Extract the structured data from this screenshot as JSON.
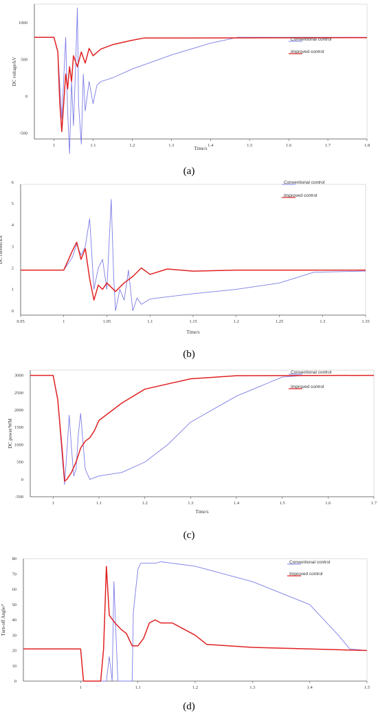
{
  "colors": {
    "conventional": "#7b7be8",
    "improved": "#e02020"
  },
  "chart_data": [
    {
      "type": "line",
      "caption": "(a)",
      "xlabel": "Time/s",
      "ylabel": "DC voltage/kV",
      "xlim": [
        0.95,
        1.8
      ],
      "ylim": [
        -580,
        1250
      ],
      "xticks": [
        1,
        1.1,
        1.2,
        1.3,
        1.4,
        1.5,
        1.6,
        1.7,
        1.8
      ],
      "yticks": [
        1000,
        500,
        0,
        -500
      ],
      "legend": {
        "conventional": "Conventional control",
        "improved": "Improved control"
      },
      "series": [
        {
          "key": "conventional",
          "points": [
            [
              0.95,
              800
            ],
            [
              1.0,
              800
            ],
            [
              1.01,
              600
            ],
            [
              1.02,
              -300
            ],
            [
              1.03,
              800
            ],
            [
              1.035,
              -200
            ],
            [
              1.04,
              -780
            ],
            [
              1.045,
              200
            ],
            [
              1.05,
              -400
            ],
            [
              1.055,
              350
            ],
            [
              1.06,
              1200
            ],
            [
              1.063,
              -100
            ],
            [
              1.07,
              -650
            ],
            [
              1.075,
              300
            ],
            [
              1.08,
              -200
            ],
            [
              1.09,
              200
            ],
            [
              1.1,
              -100
            ],
            [
              1.11,
              150
            ],
            [
              1.12,
              200
            ],
            [
              1.15,
              250
            ],
            [
              1.2,
              370
            ],
            [
              1.3,
              560
            ],
            [
              1.4,
              720
            ],
            [
              1.47,
              800
            ],
            [
              1.8,
              800
            ]
          ]
        },
        {
          "key": "improved",
          "points": [
            [
              0.95,
              800
            ],
            [
              1.0,
              800
            ],
            [
              1.01,
              600
            ],
            [
              1.015,
              -100
            ],
            [
              1.02,
              -480
            ],
            [
              1.03,
              300
            ],
            [
              1.035,
              100
            ],
            [
              1.04,
              400
            ],
            [
              1.045,
              200
            ],
            [
              1.05,
              550
            ],
            [
              1.06,
              400
            ],
            [
              1.07,
              600
            ],
            [
              1.08,
              450
            ],
            [
              1.09,
              650
            ],
            [
              1.1,
              550
            ],
            [
              1.12,
              640
            ],
            [
              1.15,
              700
            ],
            [
              1.2,
              760
            ],
            [
              1.23,
              790
            ],
            [
              1.8,
              795
            ]
          ]
        }
      ]
    },
    {
      "type": "line",
      "caption": "(b)",
      "xlabel": "Time/s",
      "ylabel": "DC current/kA",
      "xlim": [
        0.95,
        1.35
      ],
      "ylim": [
        -0.2,
        5.9
      ],
      "xticks": [
        0.95,
        1,
        1.05,
        1.1,
        1.15,
        1.2,
        1.25,
        1.3,
        1.35
      ],
      "yticks": [
        6,
        5,
        4,
        3,
        2,
        1,
        0
      ],
      "legend": {
        "conventional": "Conventional control",
        "improved": "Improved control"
      },
      "series": [
        {
          "key": "conventional",
          "points": [
            [
              0.95,
              1.9
            ],
            [
              1.0,
              1.9
            ],
            [
              1.01,
              2.5
            ],
            [
              1.015,
              3.1
            ],
            [
              1.02,
              2.6
            ],
            [
              1.025,
              3.0
            ],
            [
              1.03,
              4.3
            ],
            [
              1.035,
              1.0
            ],
            [
              1.04,
              2.0
            ],
            [
              1.045,
              2.4
            ],
            [
              1.05,
              1.0
            ],
            [
              1.055,
              5.2
            ],
            [
              1.058,
              1.5
            ],
            [
              1.06,
              0.0
            ],
            [
              1.065,
              1.0
            ],
            [
              1.07,
              0.5
            ],
            [
              1.075,
              1.9
            ],
            [
              1.08,
              0.0
            ],
            [
              1.085,
              0.6
            ],
            [
              1.09,
              0.3
            ],
            [
              1.1,
              0.55
            ],
            [
              1.15,
              0.8
            ],
            [
              1.2,
              1.0
            ],
            [
              1.25,
              1.3
            ],
            [
              1.29,
              1.8
            ],
            [
              1.35,
              1.85
            ]
          ]
        },
        {
          "key": "improved",
          "points": [
            [
              0.95,
              1.9
            ],
            [
              1.0,
              1.9
            ],
            [
              1.01,
              2.8
            ],
            [
              1.015,
              3.2
            ],
            [
              1.02,
              2.4
            ],
            [
              1.025,
              2.9
            ],
            [
              1.03,
              1.5
            ],
            [
              1.035,
              0.5
            ],
            [
              1.04,
              1.2
            ],
            [
              1.045,
              1.0
            ],
            [
              1.05,
              1.3
            ],
            [
              1.06,
              0.9
            ],
            [
              1.07,
              1.3
            ],
            [
              1.08,
              1.6
            ],
            [
              1.09,
              2.0
            ],
            [
              1.1,
              1.7
            ],
            [
              1.12,
              1.95
            ],
            [
              1.15,
              1.85
            ],
            [
              1.2,
              1.9
            ],
            [
              1.35,
              1.9
            ]
          ]
        }
      ]
    },
    {
      "type": "line",
      "caption": "(c)",
      "xlabel": "Time/s",
      "ylabel": "DC power/WM",
      "xlim": [
        0.95,
        1.7
      ],
      "ylim": [
        -500,
        3150
      ],
      "xticks": [
        1,
        1.1,
        1.2,
        1.3,
        1.4,
        1.5,
        1.6,
        1.7
      ],
      "yticks": [
        3000,
        2500,
        2000,
        1500,
        1000,
        500,
        0,
        -500
      ],
      "legend": {
        "conventional": "Conventional control",
        "improved": "Improved control"
      },
      "series": [
        {
          "key": "conventional",
          "points": [
            [
              0.95,
              3000
            ],
            [
              1.0,
              3000
            ],
            [
              1.01,
              2300
            ],
            [
              1.02,
              600
            ],
            [
              1.025,
              -150
            ],
            [
              1.03,
              800
            ],
            [
              1.035,
              1850
            ],
            [
              1.04,
              900
            ],
            [
              1.045,
              100
            ],
            [
              1.05,
              300
            ],
            [
              1.055,
              1300
            ],
            [
              1.06,
              1900
            ],
            [
              1.065,
              1100
            ],
            [
              1.07,
              300
            ],
            [
              1.08,
              0
            ],
            [
              1.1,
              100
            ],
            [
              1.15,
              200
            ],
            [
              1.2,
              500
            ],
            [
              1.25,
              1000
            ],
            [
              1.3,
              1650
            ],
            [
              1.4,
              2400
            ],
            [
              1.5,
              2950
            ],
            [
              1.55,
              3000
            ],
            [
              1.7,
              3000
            ]
          ]
        },
        {
          "key": "improved",
          "points": [
            [
              0.95,
              3000
            ],
            [
              1.0,
              3000
            ],
            [
              1.01,
              2300
            ],
            [
              1.02,
              800
            ],
            [
              1.025,
              -50
            ],
            [
              1.03,
              0
            ],
            [
              1.04,
              200
            ],
            [
              1.05,
              500
            ],
            [
              1.06,
              900
            ],
            [
              1.07,
              1100
            ],
            [
              1.08,
              1200
            ],
            [
              1.09,
              1400
            ],
            [
              1.1,
              1700
            ],
            [
              1.12,
              1900
            ],
            [
              1.15,
              2200
            ],
            [
              1.2,
              2600
            ],
            [
              1.3,
              2900
            ],
            [
              1.4,
              2990
            ],
            [
              1.7,
              3000
            ]
          ]
        }
      ]
    },
    {
      "type": "line",
      "caption": "(d)",
      "xlabel": "",
      "ylabel": "Turn-off Angle/°",
      "xlim": [
        0.9,
        1.5
      ],
      "ylim": [
        0,
        80
      ],
      "xticks": [
        1,
        1.1,
        1.2,
        1.3,
        1.4,
        1.5
      ],
      "yticks": [
        80,
        70,
        60,
        50,
        40,
        30,
        20,
        10,
        0
      ],
      "legend": {
        "conventional": "Conventional control",
        "improved": "Improved control"
      },
      "series": [
        {
          "key": "conventional",
          "points": [
            [
              0.9,
              21
            ],
            [
              1.0,
              21
            ],
            [
              1.005,
              0
            ],
            [
              1.045,
              0
            ],
            [
              1.05,
              16
            ],
            [
              1.055,
              0
            ],
            [
              1.058,
              65
            ],
            [
              1.065,
              0
            ],
            [
              1.09,
              0
            ],
            [
              1.092,
              45
            ],
            [
              1.1,
              73
            ],
            [
              1.105,
              77
            ],
            [
              1.13,
              77
            ],
            [
              1.14,
              78
            ],
            [
              1.2,
              75
            ],
            [
              1.3,
              65
            ],
            [
              1.4,
              50
            ],
            [
              1.45,
              30
            ],
            [
              1.47,
              21
            ],
            [
              1.5,
              20
            ]
          ]
        },
        {
          "key": "improved",
          "points": [
            [
              0.9,
              21
            ],
            [
              1.0,
              21
            ],
            [
              1.005,
              0
            ],
            [
              1.035,
              0
            ],
            [
              1.04,
              21
            ],
            [
              1.045,
              75
            ],
            [
              1.05,
              43
            ],
            [
              1.06,
              38
            ],
            [
              1.07,
              34
            ],
            [
              1.08,
              31
            ],
            [
              1.09,
              23
            ],
            [
              1.1,
              23
            ],
            [
              1.11,
              28
            ],
            [
              1.12,
              38
            ],
            [
              1.13,
              40
            ],
            [
              1.14,
              38
            ],
            [
              1.16,
              38
            ],
            [
              1.2,
              30
            ],
            [
              1.22,
              24
            ],
            [
              1.3,
              22
            ],
            [
              1.4,
              21
            ],
            [
              1.5,
              20
            ]
          ]
        }
      ]
    }
  ]
}
